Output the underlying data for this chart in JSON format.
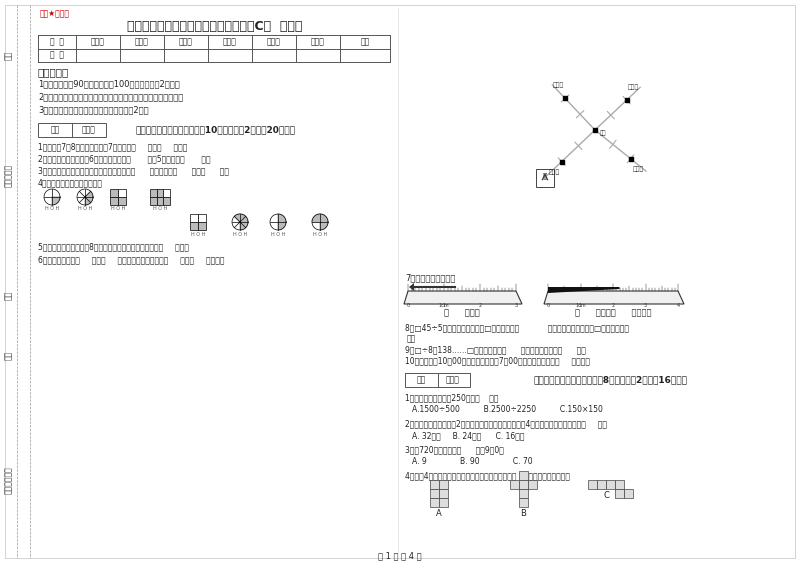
{
  "title": "江苏版三年级数学下学期开学检测试题C卷  附解析",
  "stamp_text": "趣题★自用图",
  "table_headers": [
    "题  号",
    "填空题",
    "选择题",
    "判断题",
    "计算题",
    "综合题",
    "应用题",
    "总分"
  ],
  "table_row": [
    "得  分",
    "",
    "",
    "",
    "",
    "",
    "",
    ""
  ],
  "notice_title": "考试须知：",
  "notice_items": [
    "1、考试时间：90分钟，满分为100分（含卷面分2分）。",
    "2、请首先按要求在试卷的指定位置填写您的姓名、班级、学号。",
    "3、不要在试卷上乱写乱画，卷面不整洁扣2分。"
  ],
  "section1_title": "一、用心思考，正确填空（共10小题，每题2分，共20分）。",
  "q1": "1、时针在7和8之间，分针指向7，这时是（     ）时（     ）分。",
  "q2": "2、把一根绳子平均分成6份，每份是它的（       ），5份是它的（       ）。",
  "q3": "3、在进位加法中，不管哪一位上的数相加满（      ），都要向（      ）进（      ）。",
  "q4": "4、看图写分数，并比较大小。",
  "q5": "5、小明从一楼到三楼用8秒，照这样他从一楼到五楼使用（     ）秒。",
  "q6": "6、小红家在学校（     ）方（     ）米处；小明家在学校（     ）方（     ）米处。",
  "q7_label": "7、量出钉子的长度。",
  "ruler1_label": "（      ）毫米",
  "ruler2_label": "（      ）厘米（      ）毫米。",
  "q8a": "8、□45÷5，要使商是两位数，□里最大可填（            ）；要使商是三位数，□里最小应填（",
  "q8b": "）。",
  "q9": "9、□÷8＝138……□，余数最大填（      ），这时被除数是（      ）。",
  "q10": "10、小林晚上10：00睡觉，第二天早上7：00起床，他一共睡了（     ）小时。",
  "section2_title": "二、反复比较，慎重选择（共8小题，每题2分，共16分）。",
  "mq1": "1、下面的结果刚好是250的是（    ）。",
  "mq1_options": "A.1500÷500          B.2500÷2250          C.150×150",
  "mq2": "2、一个正方形的边长是2厘米，现在将边长扩大到原来的4倍，现在正方形的周长是（     ）。",
  "mq2_options": "A. 32厘米     B. 24厘米      C. 16厘米",
  "mq3": "3、从720里连续减去（      ）个9后0。",
  "mq3_options": "A. 9              B. 90              C. 70",
  "mq4": "4、下列4个图形中，每个小正方形都一样大，那么（     ）图形的周长最长。",
  "page_label": "第 1 页 共 4 页",
  "bg_color": "#ffffff",
  "text_color": "#222222",
  "stamp_color": "#cc0000",
  "line_color": "#555555",
  "sidebar_line_color": "#999999",
  "compass_line_color": "#aaaaaa",
  "ruler_bg": "#f0f0f0"
}
